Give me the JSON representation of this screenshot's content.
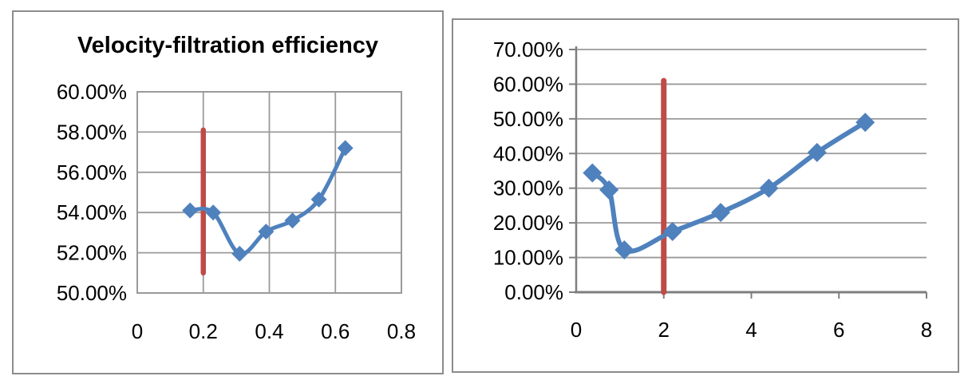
{
  "colors": {
    "series_blue": "#4f81bd",
    "reference_red": "#be4b48",
    "gridline_gray": "#9a9a9a",
    "axis_gray": "#7f7f7f",
    "frame_border_gray": "#8c8c8c",
    "text_black": "#000000",
    "background": "#ffffff"
  },
  "chart_data": [
    {
      "type": "line",
      "title": "Velocity-filtration efficiency",
      "marker": "diamond",
      "smooth": true,
      "x": [
        0.16,
        0.23,
        0.31,
        0.39,
        0.47,
        0.55,
        0.63
      ],
      "y": [
        54.1,
        54.0,
        51.95,
        53.05,
        53.6,
        54.65,
        57.2
      ],
      "y_format": "percent",
      "xlim": [
        0,
        0.8
      ],
      "ylim": [
        50,
        60
      ],
      "x_ticks": [
        "0",
        "0.2",
        "0.4",
        "0.6",
        "0.8"
      ],
      "y_ticks": [
        "60.00%",
        "58.00%",
        "56.00%",
        "54.00%",
        "52.00%",
        "50.00%"
      ],
      "grid": "both",
      "plot_border": true,
      "legend": "none",
      "reference_line": {
        "x": 0.2,
        "y_from": 51.0,
        "y_to": 58.1
      }
    },
    {
      "type": "line",
      "title": "",
      "marker": "diamond",
      "smooth": true,
      "x": [
        0.37,
        0.75,
        1.1,
        2.2,
        3.3,
        4.4,
        5.5,
        6.6
      ],
      "y": [
        34.4,
        29.5,
        12.2,
        17.5,
        23.0,
        30.0,
        40.3,
        49.0
      ],
      "y_format": "percent",
      "xlim": [
        0,
        8
      ],
      "ylim": [
        0,
        70
      ],
      "x_ticks": [
        "0",
        "2",
        "4",
        "6",
        "8"
      ],
      "y_ticks": [
        "70.00%",
        "60.00%",
        "50.00%",
        "40.00%",
        "30.00%",
        "20.00%",
        "10.00%",
        "0.00%"
      ],
      "grid": "horizontal",
      "plot_border": false,
      "legend": "none",
      "reference_line": {
        "x": 2,
        "y_from": 0,
        "y_to": 61.0
      }
    }
  ]
}
